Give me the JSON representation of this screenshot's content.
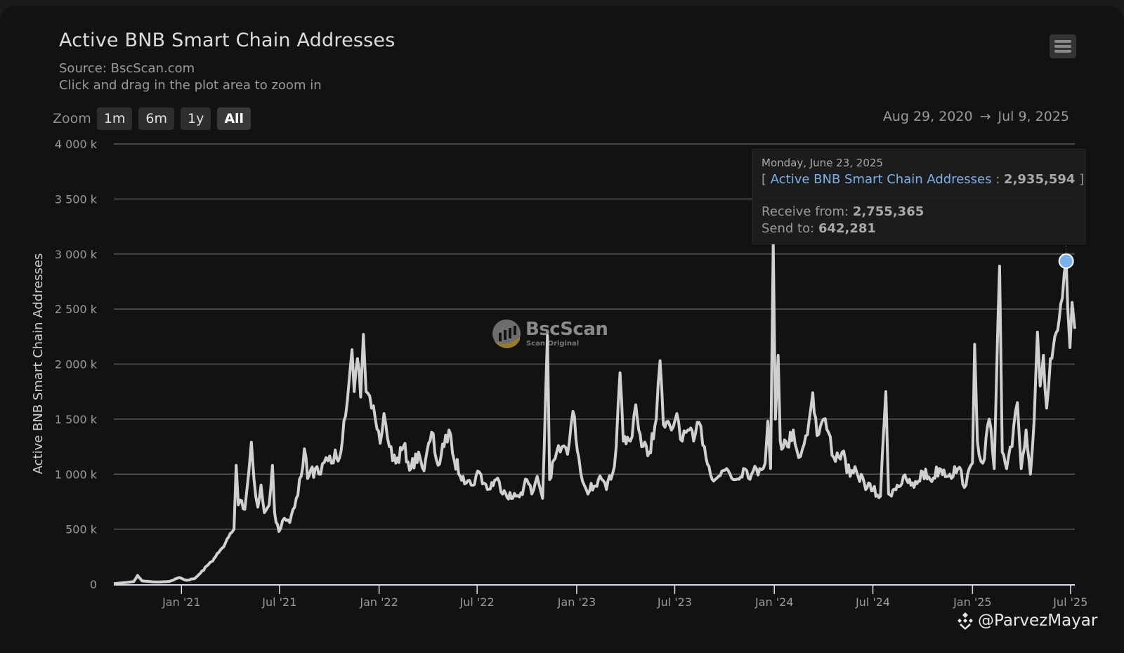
{
  "header": {
    "title": "Active BNB Smart Chain Addresses",
    "source": "Source: BscScan.com",
    "hint": "Click and drag in the plot area to zoom in",
    "menu_icon": "hamburger-menu-icon"
  },
  "zoom": {
    "label": "Zoom",
    "buttons": [
      {
        "label": "1m",
        "active": false
      },
      {
        "label": "6m",
        "active": false
      },
      {
        "label": "1y",
        "active": false
      },
      {
        "label": "All",
        "active": true
      }
    ]
  },
  "range": {
    "from": "Aug 29, 2020",
    "arrow": "→",
    "to": "Jul 9, 2025"
  },
  "tooltip": {
    "date": "Monday, June 23, 2025",
    "open_bracket": "[",
    "series_name": "Active BNB Smart Chain Addresses",
    "colon": ":",
    "value": "2,935,594",
    "close_bracket": "]",
    "receive_label": "Receive from:",
    "receive_value": "2,755,365",
    "send_label": "Send to:",
    "send_value": "642,281"
  },
  "watermark": {
    "name": "BscScan",
    "tagline": "Scan Original"
  },
  "credit": {
    "handle": "@ParvezMayar",
    "icon": "binance-logo-icon"
  },
  "colors": {
    "line": "#d0d0d0",
    "marker": "#7cb0e8",
    "grid": "#5a5a5a",
    "background": "#121212"
  },
  "chart_data": {
    "type": "line",
    "title": "Active BNB Smart Chain Addresses",
    "subtitle": "Source: BscScan.com",
    "xlabel": "",
    "ylabel": "Active BNB Smart Chain Addresses",
    "xlim": [
      "2020-08-29",
      "2025-07-09"
    ],
    "ylim": [
      0,
      4000000
    ],
    "y_ticks": [
      0,
      500000,
      1000000,
      1500000,
      2000000,
      2500000,
      3000000,
      3500000,
      4000000
    ],
    "y_tick_labels": [
      "0",
      "500 k",
      "1 000 k",
      "1 500 k",
      "2 000 k",
      "2 500 k",
      "3 000 k",
      "3 500 k",
      "4 000 k"
    ],
    "x_ticks": [
      "2021-01-01",
      "2021-07-01",
      "2022-01-01",
      "2022-07-01",
      "2023-01-01",
      "2023-07-01",
      "2024-01-01",
      "2024-07-01",
      "2025-01-01",
      "2025-07-01"
    ],
    "x_tick_labels": [
      "Jan '21",
      "Jul '21",
      "Jan '22",
      "Jul '22",
      "Jan '23",
      "Jul '23",
      "Jan '24",
      "Jul '24",
      "Jan '25",
      "Jul '25"
    ],
    "grid": true,
    "legend": "none",
    "highlight": {
      "date": "2025-06-23",
      "value": 2935594
    },
    "series": [
      {
        "name": "Active BNB Smart Chain Addresses",
        "points": [
          [
            "2020-08-29",
            5000
          ],
          [
            "2020-09-20",
            15000
          ],
          [
            "2020-10-05",
            25000
          ],
          [
            "2020-10-12",
            80000
          ],
          [
            "2020-10-20",
            30000
          ],
          [
            "2020-11-15",
            20000
          ],
          [
            "2020-12-10",
            25000
          ],
          [
            "2020-12-28",
            60000
          ],
          [
            "2021-01-10",
            35000
          ],
          [
            "2021-01-25",
            50000
          ],
          [
            "2021-02-05",
            100000
          ],
          [
            "2021-02-20",
            180000
          ],
          [
            "2021-03-05",
            250000
          ],
          [
            "2021-03-20",
            340000
          ],
          [
            "2021-04-01",
            460000
          ],
          [
            "2021-04-08",
            500000
          ],
          [
            "2021-04-12",
            1080000
          ],
          [
            "2021-04-16",
            720000
          ],
          [
            "2021-04-22",
            760000
          ],
          [
            "2021-04-28",
            680000
          ],
          [
            "2021-05-05",
            1000000
          ],
          [
            "2021-05-10",
            1290000
          ],
          [
            "2021-05-15",
            950000
          ],
          [
            "2021-05-22",
            700000
          ],
          [
            "2021-05-28",
            900000
          ],
          [
            "2021-06-03",
            650000
          ],
          [
            "2021-06-12",
            720000
          ],
          [
            "2021-06-18",
            1080000
          ],
          [
            "2021-06-22",
            650000
          ],
          [
            "2021-06-30",
            480000
          ],
          [
            "2021-07-10",
            600000
          ],
          [
            "2021-07-20",
            560000
          ],
          [
            "2021-08-01",
            780000
          ],
          [
            "2021-08-10",
            980000
          ],
          [
            "2021-08-16",
            1230000
          ],
          [
            "2021-08-22",
            960000
          ],
          [
            "2021-09-05",
            1050000
          ],
          [
            "2021-09-15",
            1000000
          ],
          [
            "2021-09-25",
            1150000
          ],
          [
            "2021-10-05",
            1100000
          ],
          [
            "2021-10-12",
            1220000
          ],
          [
            "2021-10-20",
            1150000
          ],
          [
            "2021-10-28",
            1480000
          ],
          [
            "2021-11-03",
            1650000
          ],
          [
            "2021-11-08",
            1920000
          ],
          [
            "2021-11-12",
            2130000
          ],
          [
            "2021-11-16",
            1750000
          ],
          [
            "2021-11-22",
            2050000
          ],
          [
            "2021-11-28",
            1700000
          ],
          [
            "2021-12-03",
            2270000
          ],
          [
            "2021-12-08",
            1750000
          ],
          [
            "2021-12-18",
            1600000
          ],
          [
            "2021-12-25",
            1500000
          ],
          [
            "2022-01-03",
            1280000
          ],
          [
            "2022-01-10",
            1550000
          ],
          [
            "2022-01-20",
            1250000
          ],
          [
            "2022-02-01",
            1100000
          ],
          [
            "2022-02-15",
            1250000
          ],
          [
            "2022-03-01",
            1050000
          ],
          [
            "2022-03-15",
            1200000
          ],
          [
            "2022-03-25",
            1030000
          ],
          [
            "2022-04-08",
            1380000
          ],
          [
            "2022-04-20",
            1080000
          ],
          [
            "2022-05-01",
            1250000
          ],
          [
            "2022-05-10",
            1400000
          ],
          [
            "2022-05-20",
            1120000
          ],
          [
            "2022-06-05",
            980000
          ],
          [
            "2022-06-20",
            900000
          ],
          [
            "2022-07-05",
            1020000
          ],
          [
            "2022-07-20",
            860000
          ],
          [
            "2022-08-05",
            950000
          ],
          [
            "2022-08-20",
            850000
          ],
          [
            "2022-09-05",
            780000
          ],
          [
            "2022-09-20",
            830000
          ],
          [
            "2022-10-01",
            950000
          ],
          [
            "2022-10-10",
            820000
          ],
          [
            "2022-10-20",
            980000
          ],
          [
            "2022-10-30",
            780000
          ],
          [
            "2022-11-08",
            2260000
          ],
          [
            "2022-11-12",
            950000
          ],
          [
            "2022-11-25",
            1200000
          ],
          [
            "2022-12-05",
            1250000
          ],
          [
            "2022-12-15",
            1180000
          ],
          [
            "2022-12-25",
            1570000
          ],
          [
            "2023-01-05",
            1150000
          ],
          [
            "2023-01-15",
            900000
          ],
          [
            "2023-01-25",
            850000
          ],
          [
            "2023-02-10",
            950000
          ],
          [
            "2023-02-25",
            860000
          ],
          [
            "2023-03-08",
            1000000
          ],
          [
            "2023-03-15",
            1250000
          ],
          [
            "2023-03-22",
            1920000
          ],
          [
            "2023-03-28",
            1300000
          ],
          [
            "2023-04-10",
            1300000
          ],
          [
            "2023-04-20",
            1630000
          ],
          [
            "2023-05-01",
            1250000
          ],
          [
            "2023-05-15",
            1200000
          ],
          [
            "2023-05-28",
            1500000
          ],
          [
            "2023-06-04",
            2030000
          ],
          [
            "2023-06-10",
            1450000
          ],
          [
            "2023-06-25",
            1400000
          ],
          [
            "2023-07-05",
            1550000
          ],
          [
            "2023-07-15",
            1300000
          ],
          [
            "2023-07-25",
            1400000
          ],
          [
            "2023-08-05",
            1300000
          ],
          [
            "2023-08-15",
            1470000
          ],
          [
            "2023-08-25",
            1250000
          ],
          [
            "2023-09-05",
            1000000
          ],
          [
            "2023-09-20",
            980000
          ],
          [
            "2023-10-05",
            1050000
          ],
          [
            "2023-10-20",
            950000
          ],
          [
            "2023-11-05",
            1050000
          ],
          [
            "2023-11-20",
            1000000
          ],
          [
            "2023-12-05",
            1050000
          ],
          [
            "2023-12-15",
            1100000
          ],
          [
            "2023-12-20",
            1480000
          ],
          [
            "2023-12-25",
            1050000
          ],
          [
            "2023-12-30",
            3100000
          ],
          [
            "2024-01-03",
            1500000
          ],
          [
            "2024-01-08",
            2080000
          ],
          [
            "2024-01-12",
            1300000
          ],
          [
            "2024-01-25",
            1250000
          ],
          [
            "2024-02-05",
            1400000
          ],
          [
            "2024-02-15",
            1150000
          ],
          [
            "2024-02-25",
            1270000
          ],
          [
            "2024-03-05",
            1480000
          ],
          [
            "2024-03-12",
            1740000
          ],
          [
            "2024-03-20",
            1350000
          ],
          [
            "2024-04-01",
            1500000
          ],
          [
            "2024-04-10",
            1380000
          ],
          [
            "2024-04-20",
            1150000
          ],
          [
            "2024-05-05",
            1200000
          ],
          [
            "2024-05-20",
            980000
          ],
          [
            "2024-06-01",
            1020000
          ],
          [
            "2024-06-15",
            920000
          ],
          [
            "2024-07-01",
            850000
          ],
          [
            "2024-07-15",
            800000
          ],
          [
            "2024-07-25",
            1750000
          ],
          [
            "2024-07-30",
            820000
          ],
          [
            "2024-08-15",
            900000
          ],
          [
            "2024-09-01",
            950000
          ],
          [
            "2024-09-15",
            880000
          ],
          [
            "2024-10-01",
            1020000
          ],
          [
            "2024-10-15",
            950000
          ],
          [
            "2024-11-01",
            1050000
          ],
          [
            "2024-11-20",
            1000000
          ],
          [
            "2024-12-05",
            1050000
          ],
          [
            "2024-12-20",
            900000
          ],
          [
            "2025-01-01",
            1100000
          ],
          [
            "2025-01-05",
            2180000
          ],
          [
            "2025-01-10",
            1300000
          ],
          [
            "2025-01-20",
            1100000
          ],
          [
            "2025-02-01",
            1500000
          ],
          [
            "2025-02-10",
            1050000
          ],
          [
            "2025-02-20",
            2890000
          ],
          [
            "2025-02-25",
            1200000
          ],
          [
            "2025-03-05",
            1050000
          ],
          [
            "2025-03-15",
            1250000
          ],
          [
            "2025-03-25",
            1650000
          ],
          [
            "2025-04-01",
            1050000
          ],
          [
            "2025-04-10",
            1400000
          ],
          [
            "2025-04-18",
            1000000
          ],
          [
            "2025-04-25",
            1500000
          ],
          [
            "2025-05-01",
            2290000
          ],
          [
            "2025-05-06",
            1800000
          ],
          [
            "2025-05-12",
            2080000
          ],
          [
            "2025-05-18",
            1600000
          ],
          [
            "2025-05-25",
            2050000
          ],
          [
            "2025-06-02",
            2250000
          ],
          [
            "2025-06-10",
            2400000
          ],
          [
            "2025-06-16",
            2600000
          ],
          [
            "2025-06-23",
            2935594
          ],
          [
            "2025-06-26",
            2500000
          ],
          [
            "2025-06-30",
            2150000
          ],
          [
            "2025-07-04",
            2560000
          ],
          [
            "2025-07-09",
            2320000
          ]
        ]
      }
    ]
  }
}
